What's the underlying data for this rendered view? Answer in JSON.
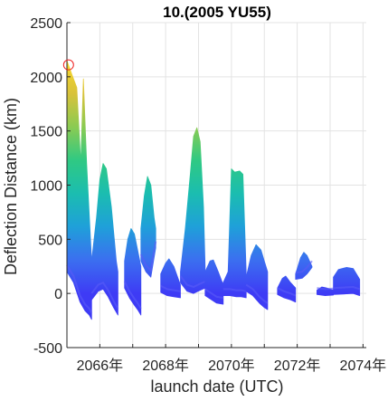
{
  "chart_data": {
    "type": "area",
    "title": "10.(2005 YU55)",
    "xlabel": "launch date (UTC)",
    "ylabel": "Deflection Distance (km)",
    "xlim": [
      2065.0,
      2074.1
    ],
    "ylim": [
      -500,
      2500
    ],
    "x_ticks": [
      {
        "value": 2066,
        "label": "2066年"
      },
      {
        "value": 2068,
        "label": "2068年"
      },
      {
        "value": 2070,
        "label": "2070年"
      },
      {
        "value": 2072,
        "label": "2072年"
      },
      {
        "value": 2074,
        "label": "2074年"
      }
    ],
    "y_ticks": [
      {
        "value": 2500,
        "label": "2500"
      },
      {
        "value": 2000,
        "label": "2000"
      },
      {
        "value": 1500,
        "label": "1500"
      },
      {
        "value": 1000,
        "label": "1000"
      },
      {
        "value": 500,
        "label": "500"
      },
      {
        "value": 0,
        "label": "0"
      },
      {
        "value": -500,
        "label": "-500"
      }
    ],
    "grid": true,
    "colormap": [
      "#3e3bf5",
      "#3b6ff0",
      "#1fa0d9",
      "#1bbdb0",
      "#2fc983",
      "#8acb52",
      "#d8c23a",
      "#f9d82a"
    ],
    "color_range": [
      0,
      2150
    ],
    "marker": {
      "x": 2065.05,
      "y": 2110,
      "label": "",
      "color": "#ee2222"
    },
    "windows": [
      {
        "x0": 2065.0,
        "x1": 2065.75,
        "top": [
          [
            2065.0,
            2150
          ],
          [
            2065.15,
            2020
          ],
          [
            2065.3,
            1900
          ],
          [
            2065.42,
            1200
          ],
          [
            2065.5,
            1980
          ],
          [
            2065.6,
            1200
          ],
          [
            2065.75,
            300
          ]
        ],
        "bottom": [
          [
            2065.0,
            200
          ],
          [
            2065.2,
            100
          ],
          [
            2065.4,
            -80
          ],
          [
            2065.55,
            -160
          ],
          [
            2065.68,
            -200
          ],
          [
            2065.75,
            -240
          ]
        ]
      },
      {
        "x0": 2065.75,
        "x1": 2066.55,
        "top": [
          [
            2065.75,
            300
          ],
          [
            2065.9,
            700
          ],
          [
            2066.0,
            1050
          ],
          [
            2066.1,
            1200
          ],
          [
            2066.2,
            1150
          ],
          [
            2066.35,
            800
          ],
          [
            2066.5,
            300
          ],
          [
            2066.55,
            200
          ]
        ],
        "bottom": [
          [
            2065.75,
            -60
          ],
          [
            2065.95,
            20
          ],
          [
            2066.1,
            40
          ],
          [
            2066.25,
            -30
          ],
          [
            2066.4,
            -120
          ],
          [
            2066.55,
            -200
          ]
        ]
      },
      {
        "x0": 2066.75,
        "x1": 2067.25,
        "top": [
          [
            2066.75,
            300
          ],
          [
            2066.85,
            500
          ],
          [
            2066.95,
            600
          ],
          [
            2067.05,
            550
          ],
          [
            2067.15,
            400
          ],
          [
            2067.25,
            250
          ]
        ],
        "bottom": [
          [
            2066.75,
            50
          ],
          [
            2066.9,
            -40
          ],
          [
            2067.05,
            -110
          ],
          [
            2067.15,
            -150
          ],
          [
            2067.25,
            -200
          ]
        ]
      },
      {
        "x0": 2067.25,
        "x1": 2067.7,
        "top": [
          [
            2067.25,
            600
          ],
          [
            2067.35,
            900
          ],
          [
            2067.45,
            1080
          ],
          [
            2067.55,
            1000
          ],
          [
            2067.65,
            700
          ],
          [
            2067.7,
            600
          ]
        ],
        "bottom": [
          [
            2067.25,
            300
          ],
          [
            2067.4,
            200
          ],
          [
            2067.55,
            150
          ],
          [
            2067.7,
            420
          ]
        ]
      },
      {
        "x0": 2067.85,
        "x1": 2068.45,
        "top": [
          [
            2067.85,
            180
          ],
          [
            2068.0,
            280
          ],
          [
            2068.1,
            320
          ],
          [
            2068.25,
            250
          ],
          [
            2068.4,
            120
          ],
          [
            2068.45,
            80
          ]
        ],
        "bottom": [
          [
            2067.85,
            10
          ],
          [
            2068.05,
            -20
          ],
          [
            2068.25,
            -30
          ],
          [
            2068.45,
            -40
          ]
        ]
      },
      {
        "x0": 2068.45,
        "x1": 2069.2,
        "top": [
          [
            2068.45,
            200
          ],
          [
            2068.6,
            600
          ],
          [
            2068.75,
            1100
          ],
          [
            2068.85,
            1450
          ],
          [
            2068.95,
            1530
          ],
          [
            2069.05,
            1400
          ],
          [
            2069.15,
            800
          ],
          [
            2069.2,
            250
          ]
        ],
        "bottom": [
          [
            2068.45,
            100
          ],
          [
            2068.65,
            20
          ],
          [
            2068.85,
            0
          ],
          [
            2069.05,
            30
          ],
          [
            2069.2,
            50
          ]
        ]
      },
      {
        "x0": 2069.2,
        "x1": 2069.75,
        "top": [
          [
            2069.2,
            200
          ],
          [
            2069.35,
            300
          ],
          [
            2069.45,
            310
          ],
          [
            2069.6,
            200
          ],
          [
            2069.75,
            80
          ]
        ],
        "bottom": [
          [
            2069.2,
            -20
          ],
          [
            2069.4,
            -60
          ],
          [
            2069.55,
            -90
          ],
          [
            2069.75,
            -100
          ]
        ]
      },
      {
        "x0": 2069.75,
        "x1": 2070.45,
        "top": [
          [
            2069.75,
            100
          ],
          [
            2069.9,
            200
          ],
          [
            2070.0,
            1150
          ],
          [
            2070.1,
            1120
          ],
          [
            2070.25,
            1130
          ],
          [
            2070.35,
            1100
          ],
          [
            2070.45,
            200
          ]
        ],
        "bottom": [
          [
            2069.75,
            -20
          ],
          [
            2069.95,
            -20
          ],
          [
            2070.15,
            -30
          ],
          [
            2070.3,
            -30
          ],
          [
            2070.45,
            -40
          ]
        ]
      },
      {
        "x0": 2070.45,
        "x1": 2071.1,
        "top": [
          [
            2070.45,
            150
          ],
          [
            2070.6,
            350
          ],
          [
            2070.75,
            450
          ],
          [
            2070.9,
            400
          ],
          [
            2071.0,
            300
          ],
          [
            2071.1,
            200
          ]
        ],
        "bottom": [
          [
            2070.45,
            20
          ],
          [
            2070.65,
            -20
          ],
          [
            2070.85,
            -90
          ],
          [
            2071.0,
            -130
          ],
          [
            2071.1,
            -150
          ]
        ]
      },
      {
        "x0": 2071.4,
        "x1": 2071.95,
        "top": [
          [
            2071.4,
            50
          ],
          [
            2071.55,
            140
          ],
          [
            2071.65,
            160
          ],
          [
            2071.8,
            100
          ],
          [
            2071.95,
            50
          ]
        ],
        "bottom": [
          [
            2071.4,
            -10
          ],
          [
            2071.6,
            -40
          ],
          [
            2071.8,
            -60
          ],
          [
            2071.95,
            -80
          ]
        ]
      },
      {
        "x0": 2071.95,
        "x1": 2072.45,
        "top": [
          [
            2071.95,
            180
          ],
          [
            2072.1,
            330
          ],
          [
            2072.2,
            380
          ],
          [
            2072.3,
            350
          ],
          [
            2072.45,
            250
          ]
        ],
        "bottom": [
          [
            2071.95,
            130
          ],
          [
            2072.15,
            140
          ],
          [
            2072.3,
            180
          ],
          [
            2072.45,
            240
          ]
        ]
      },
      {
        "x0": 2072.6,
        "x1": 2073.1,
        "top": [
          [
            2072.6,
            30
          ],
          [
            2072.75,
            60
          ],
          [
            2072.9,
            50
          ],
          [
            2073.1,
            30
          ]
        ],
        "bottom": [
          [
            2072.6,
            -10
          ],
          [
            2072.85,
            -20
          ],
          [
            2073.1,
            -15
          ]
        ]
      },
      {
        "x0": 2073.1,
        "x1": 2073.9,
        "top": [
          [
            2073.1,
            150
          ],
          [
            2073.25,
            220
          ],
          [
            2073.5,
            240
          ],
          [
            2073.7,
            230
          ],
          [
            2073.9,
            130
          ]
        ],
        "bottom": [
          [
            2073.1,
            -10
          ],
          [
            2073.4,
            -5
          ],
          [
            2073.7,
            0
          ],
          [
            2073.9,
            -20
          ]
        ]
      }
    ]
  }
}
